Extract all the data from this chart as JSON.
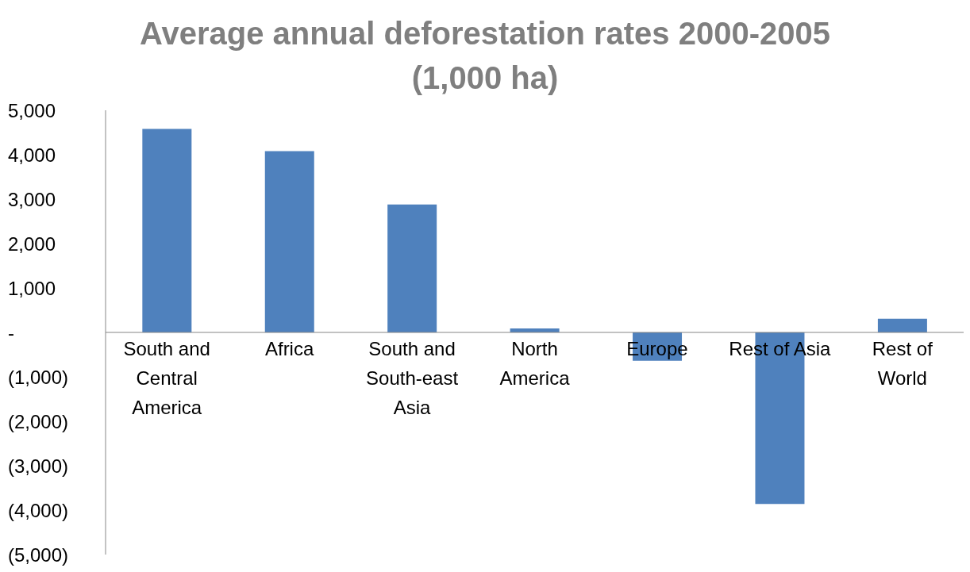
{
  "chart_data": {
    "type": "bar",
    "title": "Average annual  deforestation rates 2000-2005 (1,000 ha)",
    "categories": [
      "South and Central America",
      "Africa",
      "South and South-east Asia",
      "North America",
      "Europe",
      "Rest of Asia",
      "Rest of World"
    ],
    "values": [
      4580,
      4080,
      2880,
      90,
      -640,
      -3860,
      310
    ],
    "color": "#4f81bd",
    "ylim": [
      -5000,
      5000
    ],
    "yticks": [
      {
        "value": -5000,
        "label": "(5,000)"
      },
      {
        "value": -4000,
        "label": "(4,000)"
      },
      {
        "value": -3000,
        "label": "(3,000)"
      },
      {
        "value": -2000,
        "label": "(2,000)"
      },
      {
        "value": -1000,
        "label": "(1,000)"
      },
      {
        "value": 0,
        "label": "-"
      },
      {
        "value": 1000,
        "label": "1,000"
      },
      {
        "value": 2000,
        "label": "2,000"
      },
      {
        "value": 3000,
        "label": "3,000"
      },
      {
        "value": 4000,
        "label": "4,000"
      },
      {
        "value": 5000,
        "label": "5,000"
      }
    ],
    "grid": false,
    "legend": false
  }
}
